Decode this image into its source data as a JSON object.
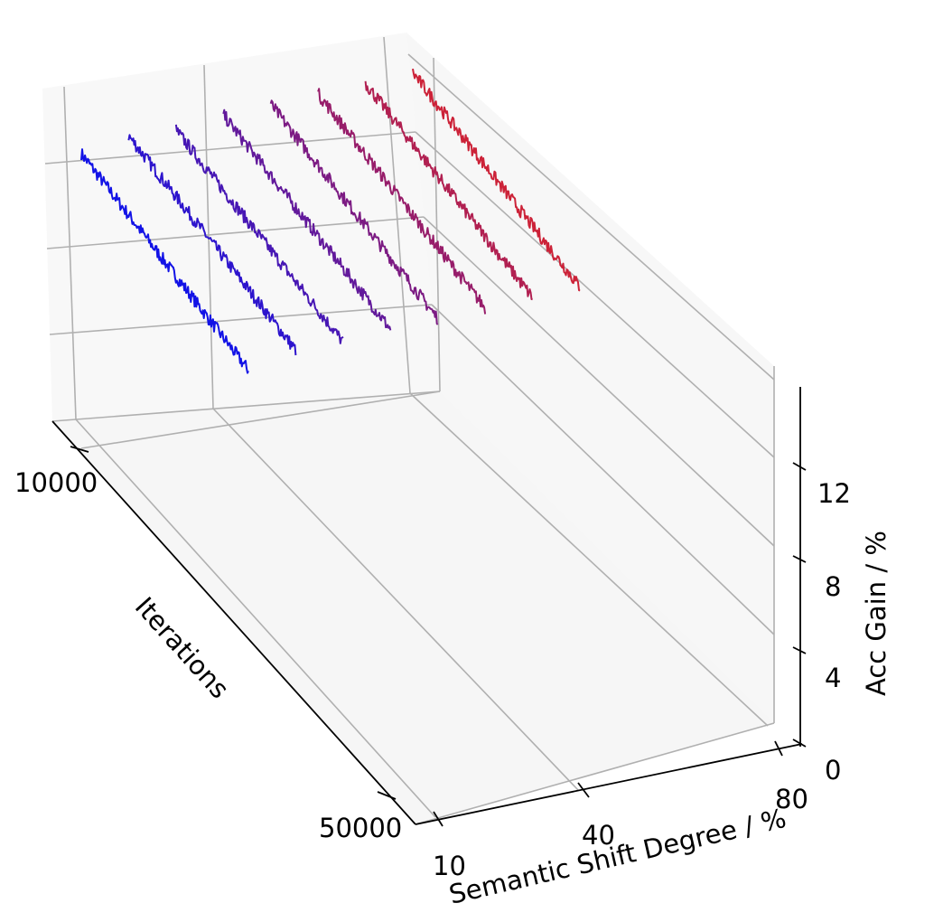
{
  "chart_data": {
    "type": "line",
    "projection": "3d",
    "xlabel": "Semantic Shift Degree / %",
    "ylabel": "Iterations",
    "zlabel": "Acc Gain / %",
    "x_ticks": [
      "10",
      "40",
      "80"
    ],
    "y_ticks": [
      "10000",
      "50000"
    ],
    "z_ticks": [
      "0",
      "4",
      "8",
      "12"
    ],
    "xlim": [
      10,
      80
    ],
    "ylim": [
      10000,
      50000
    ],
    "zlim": [
      0,
      16
    ],
    "grid": true,
    "color_map": {
      "low": "#1212e6",
      "high": "#cc2238"
    },
    "series": [
      {
        "shift": 10,
        "iter_end": 30000,
        "z_start": 12.4,
        "z_end": 11.2
      },
      {
        "shift": 20,
        "iter_end": 30000,
        "z_start": 12.8,
        "z_end": 11.7
      },
      {
        "shift": 30,
        "iter_end": 30000,
        "z_start": 12.7,
        "z_end": 11.7
      },
      {
        "shift": 40,
        "iter_end": 30000,
        "z_start": 13.0,
        "z_end": 11.9
      },
      {
        "shift": 50,
        "iter_end": 30000,
        "z_start": 13.1,
        "z_end": 12.0
      },
      {
        "shift": 60,
        "iter_end": 30000,
        "z_start": 13.2,
        "z_end": 12.1
      },
      {
        "shift": 70,
        "iter_end": 30000,
        "z_start": 13.3,
        "z_end": 12.2
      },
      {
        "shift": 80,
        "iter_end": 30000,
        "z_start": 13.4,
        "z_end": 12.3
      }
    ]
  }
}
